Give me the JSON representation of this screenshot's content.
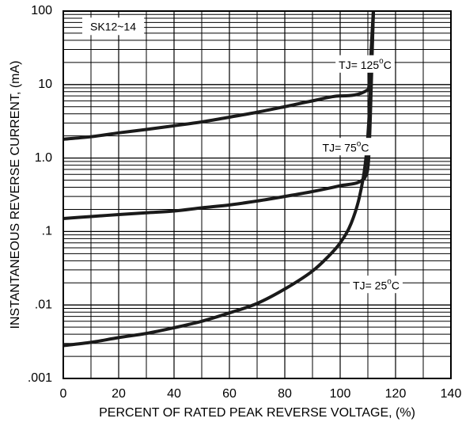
{
  "chart_data": {
    "type": "line",
    "title": "",
    "xlabel": "PERCENT OF RATED PEAK REVERSE VOLTAGE, (%)",
    "ylabel": "INSTANTANEOUS REVERSE CURRENT, (mA)",
    "xlim": [
      0,
      140
    ],
    "ylim": [
      0.001,
      100
    ],
    "yscale": "log",
    "grid": true,
    "x_ticks": [
      "0",
      "20",
      "40",
      "60",
      "80",
      "100",
      "120",
      "140"
    ],
    "y_ticks": [
      {
        "value": 100,
        "label": "100"
      },
      {
        "value": 10,
        "label": "10"
      },
      {
        "value": 1,
        "label": "1.0"
      },
      {
        "value": 0.1,
        "label": ".1"
      },
      {
        "value": 0.01,
        "label": ".01"
      },
      {
        "value": 0.001,
        "label": ".001"
      }
    ],
    "annotation": "SK12~14",
    "series": [
      {
        "name": "TJ= 125°C",
        "label_prefix": "TJ= 125",
        "label_sup": "o",
        "label_suffix": "C",
        "label_at": {
          "x": 109,
          "y": 18
        },
        "x": [
          0,
          10,
          20,
          30,
          40,
          50,
          60,
          70,
          80,
          90,
          100,
          110,
          112
        ],
        "values": [
          1.8,
          1.95,
          2.2,
          2.45,
          2.75,
          3.1,
          3.6,
          4.2,
          5.0,
          6.0,
          7.0,
          8.5,
          100
        ]
      },
      {
        "name": "TJ= 75°C",
        "label_prefix": "TJ= 75",
        "label_sup": "o",
        "label_suffix": "C",
        "label_at": {
          "x": 102,
          "y": 1.35
        },
        "x": [
          0,
          10,
          20,
          30,
          40,
          50,
          60,
          70,
          80,
          90,
          100,
          108,
          109,
          110.3,
          112
        ],
        "values": [
          0.15,
          0.16,
          0.17,
          0.18,
          0.19,
          0.21,
          0.23,
          0.26,
          0.3,
          0.35,
          0.42,
          0.5,
          0.55,
          1.0,
          100
        ]
      },
      {
        "name": "TJ= 25°C",
        "label_prefix": "TJ= 25",
        "label_sup": "o",
        "label_suffix": "C",
        "label_at": {
          "x": 113,
          "y": 0.018
        },
        "x": [
          0,
          10,
          20,
          30,
          40,
          50,
          60,
          70,
          80,
          90,
          95,
          100,
          104,
          107,
          109,
          110,
          111,
          112
        ],
        "values": [
          0.0028,
          0.0031,
          0.0036,
          0.0041,
          0.0049,
          0.006,
          0.0078,
          0.0105,
          0.0165,
          0.029,
          0.043,
          0.07,
          0.13,
          0.3,
          0.8,
          2.0,
          10,
          100
        ]
      }
    ]
  }
}
